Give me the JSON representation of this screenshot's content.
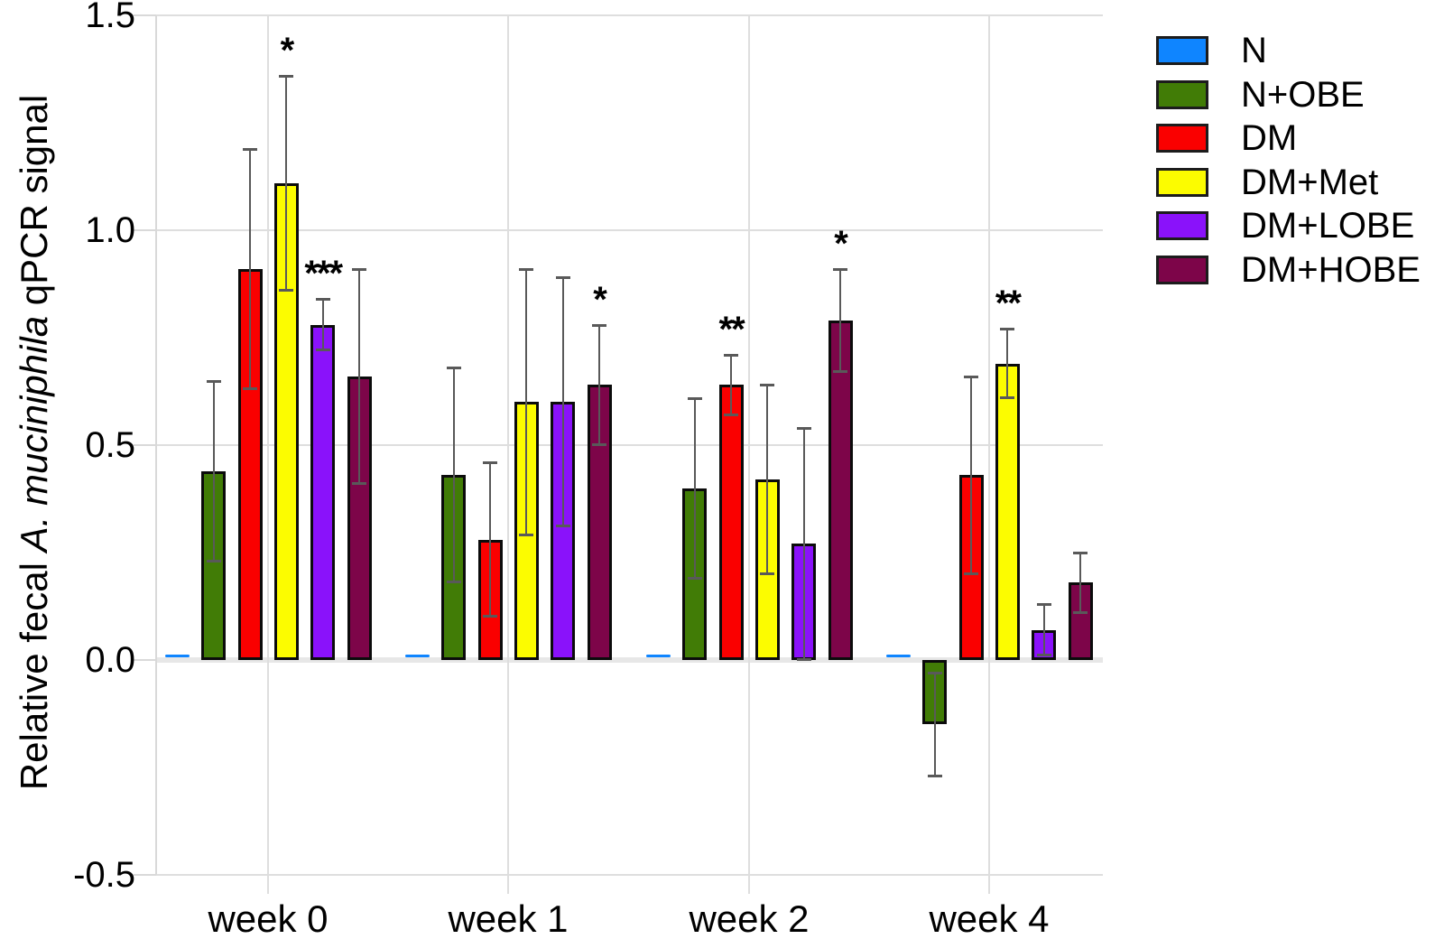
{
  "figure": {
    "background": "#ffffff"
  },
  "y_axis": {
    "title_prefix": "Relative fecal ",
    "title_italic": "A. muciniphila",
    "title_suffix": " qPCR signal",
    "tick_labels": [
      "1.5",
      "1.0",
      "0.5",
      "0.0",
      "-0.5"
    ],
    "tick_values": [
      1.5,
      1.0,
      0.5,
      0.0,
      -0.5
    ]
  },
  "chart_data": {
    "type": "bar",
    "title": "",
    "ylabel": "Relative fecal A. muciniphila qPCR signal",
    "xlabel": "",
    "categories": [
      "week 0",
      "week 1",
      "week 2",
      "week 4"
    ],
    "ylim": [
      -0.5,
      1.5
    ],
    "yticks": [
      1.5,
      1.0,
      0.5,
      0.0,
      -0.5
    ],
    "grid": true,
    "legend_position": "top-right",
    "error_bars": true,
    "series": [
      {
        "name": "N",
        "color": "#0f85ff",
        "values": [
          0.006,
          0.006,
          0.006,
          0.006
        ],
        "errors": [
          0,
          0,
          0,
          0
        ],
        "sig": [
          "",
          "",
          "",
          ""
        ]
      },
      {
        "name": "N+OBE",
        "color": "#417c06",
        "values": [
          0.44,
          0.43,
          0.4,
          -0.15
        ],
        "errors": [
          0.21,
          0.25,
          0.21,
          0.12
        ],
        "sig": [
          "",
          "",
          "",
          ""
        ]
      },
      {
        "name": "DM",
        "color": "#fa0000",
        "values": [
          0.91,
          0.28,
          0.64,
          0.43
        ],
        "errors": [
          0.28,
          0.18,
          0.07,
          0.23
        ],
        "sig": [
          "",
          "",
          "**",
          ""
        ]
      },
      {
        "name": "DM+Met",
        "color": "#fcfc00",
        "values": [
          1.11,
          0.6,
          0.42,
          0.69
        ],
        "errors": [
          0.25,
          0.31,
          0.22,
          0.08
        ],
        "sig": [
          "*",
          "",
          "",
          "**"
        ]
      },
      {
        "name": "DM+LOBE",
        "color": "#8a12fa",
        "values": [
          0.78,
          0.6,
          0.27,
          0.07
        ],
        "errors": [
          0.06,
          0.29,
          0.27,
          0.06
        ],
        "sig": [
          "***",
          "",
          "",
          ""
        ]
      },
      {
        "name": "DM+HOBE",
        "color": "#7d0549",
        "values": [
          0.66,
          0.64,
          0.79,
          0.18
        ],
        "errors": [
          0.25,
          0.14,
          0.12,
          0.07
        ],
        "sig": [
          "",
          "*",
          "*",
          ""
        ]
      }
    ],
    "colors": {
      "gridline": "#dedede",
      "zero_line": "#e7e7e7",
      "error_bar": "#595959",
      "bar_edge": "#0b0b0b",
      "text": "#000000"
    }
  }
}
